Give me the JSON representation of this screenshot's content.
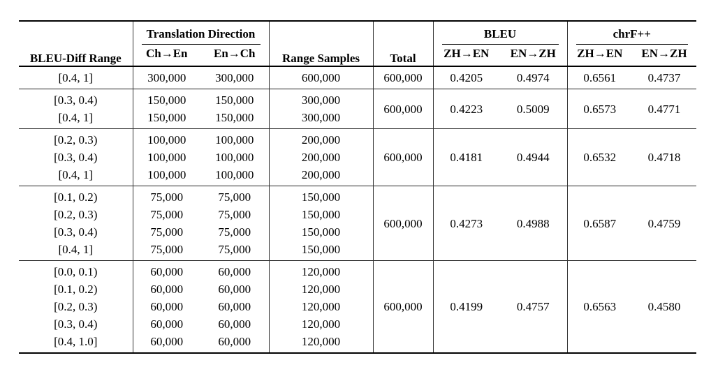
{
  "table": {
    "header": {
      "bleu_diff_range": "BLEU-Diff Range",
      "translation_direction": "Translation Direction",
      "ch_en": "Ch→En",
      "en_ch": "En→Ch",
      "range_samples": "Range Samples",
      "total": "Total",
      "bleu": "BLEU",
      "chrf": "chrF++",
      "zh_en": "ZH→EN",
      "en_zh": "EN→ZH"
    },
    "groups": [
      {
        "rows": [
          {
            "range": "[0.4, 1]",
            "ch_en": "300,000",
            "en_ch": "300,000",
            "samples": "600,000"
          }
        ],
        "total": "600,000",
        "bleu_zh_en": "0.4205",
        "bleu_en_zh": "0.4974",
        "chrf_zh_en": "0.6561",
        "chrf_en_zh": "0.4737"
      },
      {
        "rows": [
          {
            "range": "[0.3, 0.4)",
            "ch_en": "150,000",
            "en_ch": "150,000",
            "samples": "300,000"
          },
          {
            "range": "[0.4, 1]",
            "ch_en": "150,000",
            "en_ch": "150,000",
            "samples": "300,000"
          }
        ],
        "total": "600,000",
        "bleu_zh_en": "0.4223",
        "bleu_en_zh": "0.5009",
        "chrf_zh_en": "0.6573",
        "chrf_en_zh": "0.4771"
      },
      {
        "rows": [
          {
            "range": "[0.2, 0.3)",
            "ch_en": "100,000",
            "en_ch": "100,000",
            "samples": "200,000"
          },
          {
            "range": "[0.3, 0.4)",
            "ch_en": "100,000",
            "en_ch": "100,000",
            "samples": "200,000"
          },
          {
            "range": "[0.4, 1]",
            "ch_en": "100,000",
            "en_ch": "100,000",
            "samples": "200,000"
          }
        ],
        "total": "600,000",
        "bleu_zh_en": "0.4181",
        "bleu_en_zh": "0.4944",
        "chrf_zh_en": "0.6532",
        "chrf_en_zh": "0.4718"
      },
      {
        "rows": [
          {
            "range": "[0.1, 0.2)",
            "ch_en": "75,000",
            "en_ch": "75,000",
            "samples": "150,000"
          },
          {
            "range": "[0.2, 0.3)",
            "ch_en": "75,000",
            "en_ch": "75,000",
            "samples": "150,000"
          },
          {
            "range": "[0.3, 0.4)",
            "ch_en": "75,000",
            "en_ch": "75,000",
            "samples": "150,000"
          },
          {
            "range": "[0.4, 1]",
            "ch_en": "75,000",
            "en_ch": "75,000",
            "samples": "150,000"
          }
        ],
        "total": "600,000",
        "bleu_zh_en": "0.4273",
        "bleu_en_zh": "0.4988",
        "chrf_zh_en": "0.6587",
        "chrf_en_zh": "0.4759"
      },
      {
        "rows": [
          {
            "range": "[0.0, 0.1)",
            "ch_en": "60,000",
            "en_ch": "60,000",
            "samples": "120,000"
          },
          {
            "range": "[0.1, 0.2)",
            "ch_en": "60,000",
            "en_ch": "60,000",
            "samples": "120,000"
          },
          {
            "range": "[0.2, 0.3)",
            "ch_en": "60,000",
            "en_ch": "60,000",
            "samples": "120,000"
          },
          {
            "range": "[0.3, 0.4)",
            "ch_en": "60,000",
            "en_ch": "60,000",
            "samples": "120,000"
          },
          {
            "range": "[0.4, 1.0]",
            "ch_en": "60,000",
            "en_ch": "60,000",
            "samples": "120,000"
          }
        ],
        "total": "600,000",
        "bleu_zh_en": "0.4199",
        "bleu_en_zh": "0.4757",
        "chrf_zh_en": "0.6563",
        "chrf_en_zh": "0.4580"
      }
    ]
  },
  "colors": {
    "text": "#000000",
    "background": "#ffffff",
    "heavy_rule": "#000000",
    "light_rule": "#222222",
    "column_divider": "#333333"
  }
}
